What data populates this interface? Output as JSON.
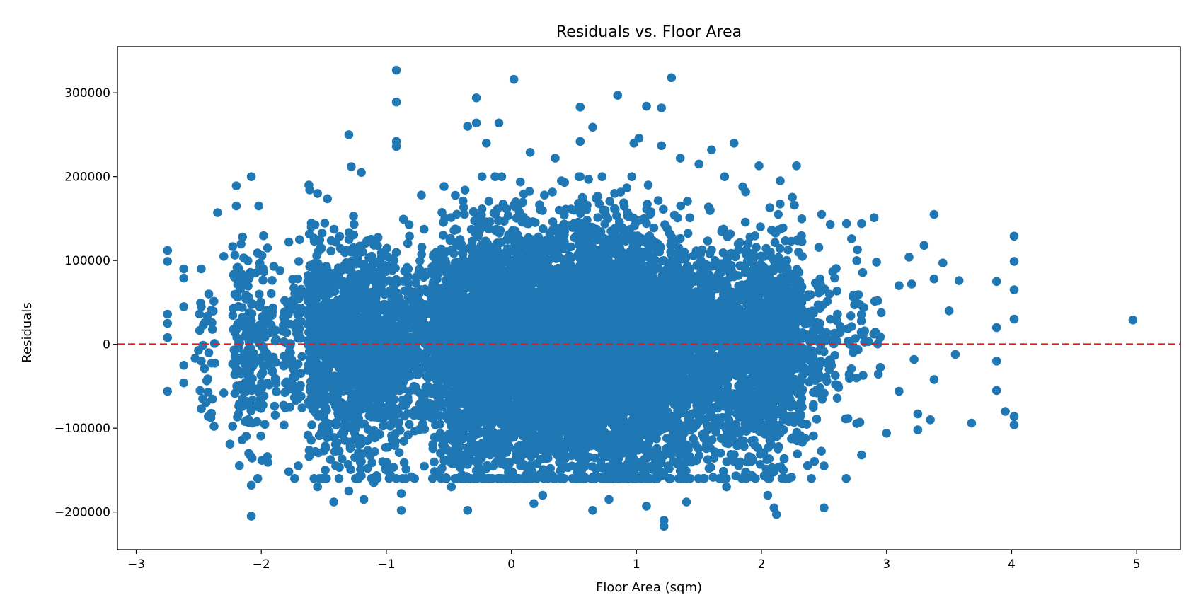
{
  "chart_data": {
    "type": "scatter",
    "title": "Residuals vs. Floor Area",
    "xlabel": "Floor Area (sqm)",
    "ylabel": "Residuals",
    "xlim": [
      -3.15,
      5.35
    ],
    "ylim": [
      -245000,
      355000
    ],
    "xticks": [
      -3,
      -2,
      -1,
      0,
      1,
      2,
      3,
      4,
      5
    ],
    "xtick_labels": [
      "−3",
      "−2",
      "−1",
      "0",
      "1",
      "2",
      "3",
      "4",
      "5"
    ],
    "yticks": [
      -200000,
      -100000,
      0,
      100000,
      200000,
      300000
    ],
    "ytick_labels": [
      "−200000",
      "−100000",
      "0",
      "100000",
      "200000",
      "300000"
    ],
    "grid": false,
    "reference_line": {
      "y": 0,
      "style": "dashed",
      "color": "#e8191a"
    },
    "colors": {
      "points": "#1f77b4",
      "reference": "#e8191a"
    },
    "series": [
      {
        "name": "residuals",
        "points": [
          [
            -2.75,
            112000
          ],
          [
            -2.75,
            99000
          ],
          [
            -2.75,
            36000
          ],
          [
            -2.75,
            25000
          ],
          [
            -2.75,
            8000
          ],
          [
            -2.75,
            -56000
          ],
          [
            -2.62,
            90000
          ],
          [
            -2.62,
            79000
          ],
          [
            -2.62,
            45000
          ],
          [
            -2.62,
            -25000
          ],
          [
            -2.62,
            -46000
          ],
          [
            -2.48,
            90000
          ],
          [
            -2.48,
            45000
          ],
          [
            -2.48,
            -20000
          ],
          [
            -2.48,
            -77000
          ],
          [
            -2.42,
            60000
          ],
          [
            -2.42,
            -10000
          ],
          [
            -2.35,
            157000
          ],
          [
            -2.3,
            105000
          ],
          [
            -2.3,
            -58000
          ],
          [
            -2.25,
            -119000
          ],
          [
            -2.2,
            189000
          ],
          [
            -2.2,
            165000
          ],
          [
            -2.15,
            128000
          ],
          [
            -2.1,
            -130000
          ],
          [
            -2.08,
            200000
          ],
          [
            -2.08,
            -168000
          ],
          [
            -2.08,
            -205000
          ],
          [
            -2.02,
            165000
          ],
          [
            -1.95,
            115000
          ],
          [
            -1.9,
            93000
          ],
          [
            -1.85,
            88000
          ],
          [
            -1.78,
            122000
          ],
          [
            -1.78,
            -152000
          ],
          [
            -1.7,
            99000
          ],
          [
            -1.62,
            190000
          ],
          [
            -1.55,
            180000
          ],
          [
            -1.55,
            -170000
          ],
          [
            -1.42,
            -188000
          ],
          [
            -1.3,
            250000
          ],
          [
            -1.3,
            -175000
          ],
          [
            -1.28,
            212000
          ],
          [
            -1.2,
            205000
          ],
          [
            -1.18,
            -185000
          ],
          [
            -1.1,
            -165000
          ],
          [
            -0.92,
            327000
          ],
          [
            -0.92,
            289000
          ],
          [
            -0.92,
            242000
          ],
          [
            -0.92,
            236000
          ],
          [
            -0.88,
            -178000
          ],
          [
            -0.88,
            -198000
          ],
          [
            -0.8,
            -158000
          ],
          [
            -0.72,
            178000
          ],
          [
            -0.6,
            110000
          ],
          [
            -0.55,
            -120000
          ],
          [
            -0.48,
            -170000
          ],
          [
            -0.35,
            260000
          ],
          [
            -0.35,
            -198000
          ],
          [
            -0.28,
            294000
          ],
          [
            -0.28,
            264000
          ],
          [
            -0.2,
            240000
          ],
          [
            -0.1,
            264000
          ],
          [
            0.02,
            316000
          ],
          [
            0.15,
            229000
          ],
          [
            0.18,
            -190000
          ],
          [
            0.25,
            -180000
          ],
          [
            0.35,
            222000
          ],
          [
            0.4,
            195000
          ],
          [
            0.55,
            283000
          ],
          [
            0.55,
            242000
          ],
          [
            0.65,
            259000
          ],
          [
            0.65,
            -198000
          ],
          [
            0.78,
            -185000
          ],
          [
            0.85,
            297000
          ],
          [
            0.98,
            240000
          ],
          [
            1.02,
            246000
          ],
          [
            1.08,
            284000
          ],
          [
            1.08,
            -193000
          ],
          [
            1.2,
            282000
          ],
          [
            1.2,
            237000
          ],
          [
            1.22,
            -210000
          ],
          [
            1.22,
            -217000
          ],
          [
            1.28,
            318000
          ],
          [
            1.35,
            222000
          ],
          [
            1.4,
            -188000
          ],
          [
            1.5,
            215000
          ],
          [
            1.6,
            232000
          ],
          [
            1.72,
            -170000
          ],
          [
            1.78,
            240000
          ],
          [
            1.85,
            188000
          ],
          [
            1.98,
            213000
          ],
          [
            2.05,
            -180000
          ],
          [
            2.1,
            -195000
          ],
          [
            2.12,
            -203000
          ],
          [
            2.15,
            195000
          ],
          [
            2.28,
            213000
          ],
          [
            2.48,
            155000
          ],
          [
            2.5,
            -195000
          ],
          [
            2.5,
            -145000
          ],
          [
            2.55,
            143000
          ],
          [
            2.68,
            144000
          ],
          [
            2.72,
            126000
          ],
          [
            2.8,
            144000
          ],
          [
            2.8,
            -132000
          ],
          [
            2.9,
            151000
          ],
          [
            2.92,
            98000
          ],
          [
            3.0,
            -106000
          ],
          [
            3.1,
            70000
          ],
          [
            3.1,
            -56000
          ],
          [
            3.18,
            104000
          ],
          [
            3.2,
            72000
          ],
          [
            3.22,
            -18000
          ],
          [
            3.25,
            -83000
          ],
          [
            3.25,
            -102000
          ],
          [
            3.3,
            118000
          ],
          [
            3.35,
            -90000
          ],
          [
            3.38,
            155000
          ],
          [
            3.38,
            78000
          ],
          [
            3.38,
            -42000
          ],
          [
            3.45,
            97000
          ],
          [
            3.5,
            40000
          ],
          [
            3.55,
            -12000
          ],
          [
            3.58,
            76000
          ],
          [
            3.68,
            -94000
          ],
          [
            3.88,
            75000
          ],
          [
            3.88,
            20000
          ],
          [
            3.88,
            -20000
          ],
          [
            3.88,
            -55000
          ],
          [
            3.95,
            -80000
          ],
          [
            4.02,
            129000
          ],
          [
            4.02,
            99000
          ],
          [
            4.02,
            65000
          ],
          [
            4.02,
            30000
          ],
          [
            4.02,
            -86000
          ],
          [
            4.02,
            -96000
          ],
          [
            4.97,
            29000
          ]
        ]
      }
    ]
  }
}
